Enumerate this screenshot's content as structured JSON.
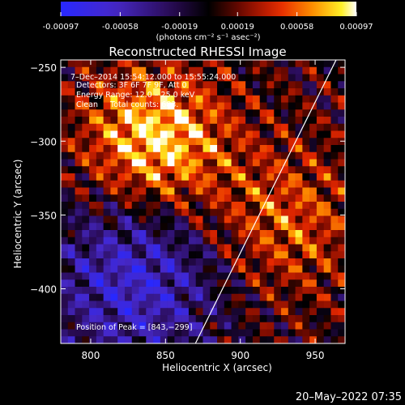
{
  "colorbar": {
    "ticks": [
      "-0.00097",
      "-0.00058",
      "-0.00019",
      "0.00019",
      "0.00058",
      "0.00097"
    ],
    "tick_values": [
      -0.00097,
      -0.00058,
      -0.00019,
      0.00019,
      0.00058,
      0.00097
    ],
    "units": "(photons cm⁻² s⁻¹ asec⁻²)",
    "range": [
      -0.00097,
      0.00097
    ]
  },
  "chart_data": {
    "type": "heatmap",
    "title": "Reconstructed RHESSI Image",
    "xlabel": "Heliocentric X (arcsec)",
    "ylabel": "Heliocentric Y (arcsec)",
    "xlim": [
      780,
      970
    ],
    "ylim": [
      -437,
      -245
    ],
    "x_ticks": [
      800,
      850,
      900,
      950
    ],
    "y_ticks": [
      -250,
      -300,
      -350,
      -400
    ],
    "x_tick_labels": [
      "800",
      "850",
      "900",
      "950"
    ],
    "y_tick_labels": [
      "−250",
      "−300",
      "−350",
      "−400"
    ],
    "peak": [
      843,
      -299
    ],
    "limb_line": {
      "x": [
        870,
        964
      ],
      "y": [
        -437,
        -245
      ]
    },
    "annotations": {
      "time": "7–Dec–2014 15:54:12.000 to 15:55:24.000",
      "detectors": "Detectors: 3F 6F 7F 9F, Att 0",
      "energy": "Energy Range: 12.0 – 25.0 keV",
      "clean": "Clean     Total counts: 683.",
      "peak": "Position of Peak = [843,−299]"
    }
  },
  "footer": {
    "date": "20–May–2022 07:35"
  }
}
